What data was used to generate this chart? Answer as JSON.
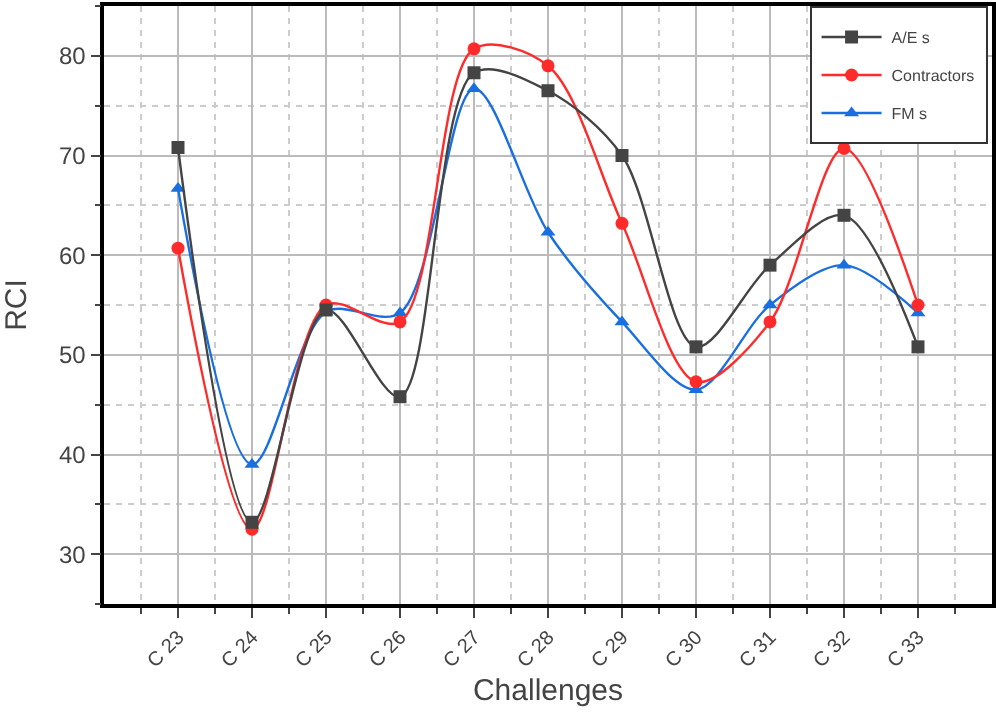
{
  "chart_data": {
    "type": "line",
    "xlabel": "Challenges",
    "ylabel": "RCI",
    "categories": [
      "C 23",
      "C 24",
      "C 25",
      "C 26",
      "C 27",
      "C 28",
      "C 29",
      "C 30",
      "C 31",
      "C 32",
      "C 33"
    ],
    "series": [
      {
        "name": "A/E s",
        "color": "#444444",
        "marker": "square",
        "values": [
          70.8,
          33.2,
          54.5,
          45.8,
          78.3,
          76.5,
          70,
          50.8,
          59,
          64,
          50.8
        ]
      },
      {
        "name": "Contractors",
        "color": "#ff2b2b",
        "marker": "circle",
        "values": [
          60.7,
          32.5,
          55,
          53.3,
          80.7,
          79,
          63.2,
          47.3,
          53.3,
          70.7,
          55
        ]
      },
      {
        "name": "FM s",
        "color": "#1a6fe0",
        "marker": "triangle",
        "values": [
          66.7,
          39,
          54.3,
          54.2,
          76.7,
          62.3,
          53.3,
          46.5,
          55,
          59,
          54.2
        ]
      }
    ],
    "ylim": [
      25,
      85
    ],
    "yticks": [
      30,
      40,
      50,
      60,
      70,
      80
    ],
    "grid": true,
    "legend": "top right"
  }
}
